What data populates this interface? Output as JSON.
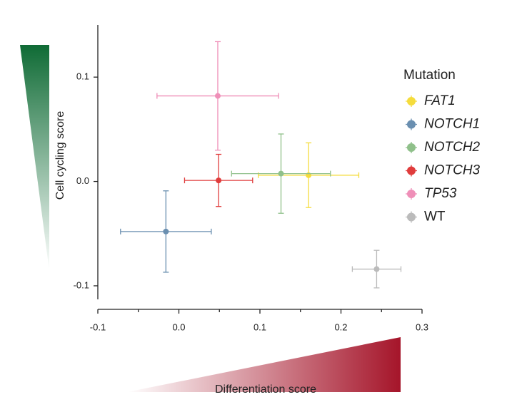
{
  "chart_data": {
    "type": "scatter",
    "xlabel": "Differentiation score",
    "ylabel": "Cell cycling score",
    "xlim": [
      -0.1,
      0.3
    ],
    "ylim": [
      -0.113,
      0.15
    ],
    "xticks": [
      -0.1,
      {
        "value": 0,
        "label": "0.0"
      },
      0.1,
      0.2,
      0.3
    ],
    "xminorticks": [
      -0.05,
      0.05,
      0.15,
      0.25
    ],
    "yticks": [
      -0.1,
      {
        "value": 0,
        "label": "0.0"
      },
      0.1
    ],
    "legend_title": "Mutation",
    "legend": "right",
    "series": [
      {
        "name": "FAT1",
        "color": "#f5dc3c",
        "style": "italic",
        "x": [
          0.16
        ],
        "y": [
          0.006
        ],
        "xerr": [
          0.062
        ],
        "yerr": [
          0.031
        ]
      },
      {
        "name": "NOTCH1",
        "color": "#6a8fb0",
        "style": "italic",
        "x": [
          -0.016
        ],
        "y": [
          -0.048
        ],
        "xerr": [
          0.056
        ],
        "yerr": [
          0.039
        ]
      },
      {
        "name": "NOTCH2",
        "color": "#8fc08a",
        "style": "italic",
        "x": [
          0.126
        ],
        "y": [
          0.0075
        ],
        "xerr": [
          0.061
        ],
        "yerr": [
          0.038
        ]
      },
      {
        "name": "NOTCH3",
        "color": "#e03c3c",
        "style": "italic",
        "x": [
          0.049
        ],
        "y": [
          0.001
        ],
        "xerr": [
          0.042
        ],
        "yerr": [
          0.025
        ]
      },
      {
        "name": "TP53",
        "color": "#ef8fb8",
        "style": "italic",
        "x": [
          0.048
        ],
        "y": [
          0.082
        ],
        "xerr": [
          0.075
        ],
        "yerr": [
          0.052
        ]
      },
      {
        "name": "WT",
        "color": "#bbbbbb",
        "style": "normal",
        "x": [
          0.244
        ],
        "y": [
          -0.084
        ],
        "xerr": [
          0.03
        ],
        "yerr": [
          0.018
        ]
      }
    ]
  }
}
